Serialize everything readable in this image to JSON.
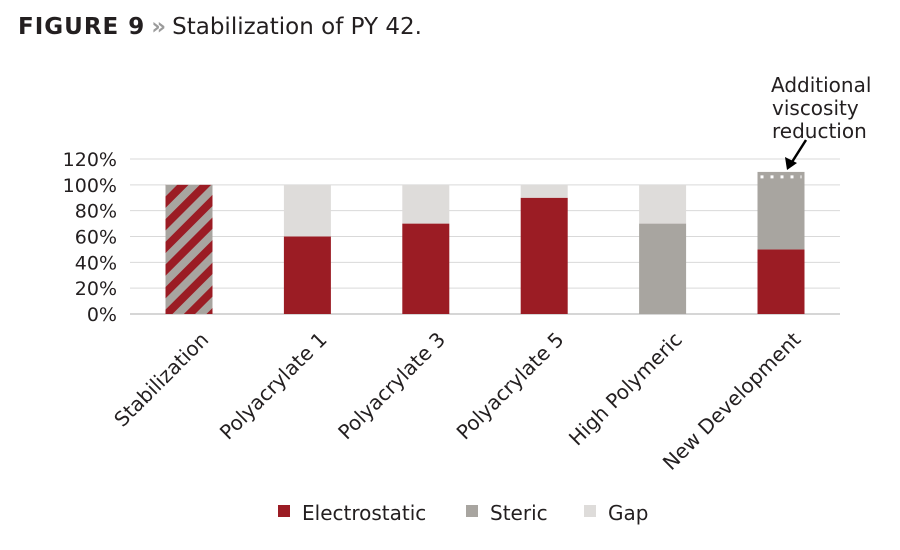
{
  "heading": {
    "label": "FIGURE 9",
    "separator": "»",
    "caption": "Stabilization of PY 42."
  },
  "chart_data": {
    "type": "bar",
    "stacked": true,
    "title": "",
    "xlabel": "",
    "ylabel": "",
    "categories": [
      "Stabilization",
      "Polyacrylate 1",
      "Polyacrylate 3",
      "Polyacrylate 5",
      "High Polymeric",
      "New Development"
    ],
    "series": [
      {
        "name": "Electrostatic",
        "color": "#9b1c24",
        "values": [
          0,
          60,
          70,
          90,
          0,
          50
        ]
      },
      {
        "name": "Steric",
        "color": "#a8a5a0",
        "values": [
          0,
          0,
          0,
          0,
          70,
          60
        ]
      },
      {
        "name": "Gap",
        "color": "#dedcda",
        "values": [
          0,
          40,
          30,
          10,
          30,
          0
        ]
      }
    ],
    "hatched_bar": {
      "category": "Stabilization",
      "value": 100,
      "pattern": "diagonal stripes",
      "colors": [
        "#9b1c24",
        "#a8a5a0"
      ]
    },
    "ylim": [
      0,
      120
    ],
    "yticks": [
      "0%",
      "20%",
      "40%",
      "60%",
      "80%",
      "100%",
      "120%"
    ],
    "grid": true,
    "legend_position": "bottom",
    "annotation": {
      "text": [
        "Additional",
        "viscosity",
        "reduction"
      ],
      "target": "New Development"
    }
  }
}
